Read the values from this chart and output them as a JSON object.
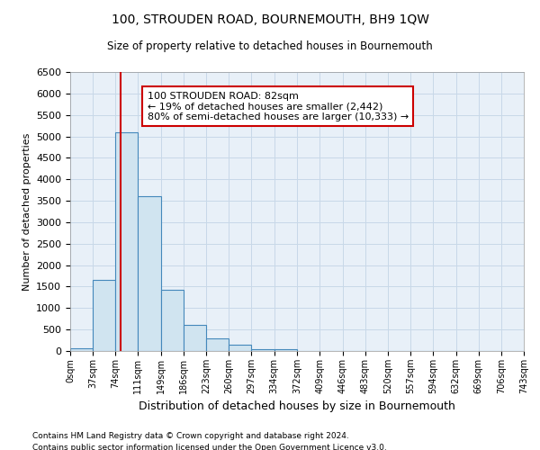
{
  "title": "100, STROUDEN ROAD, BOURNEMOUTH, BH9 1QW",
  "subtitle": "Size of property relative to detached houses in Bournemouth",
  "xlabel": "Distribution of detached houses by size in Bournemouth",
  "ylabel": "Number of detached properties",
  "footer1": "Contains HM Land Registry data © Crown copyright and database right 2024.",
  "footer2": "Contains public sector information licensed under the Open Government Licence v3.0.",
  "annotation_title": "100 STROUDEN ROAD: 82sqm",
  "annotation_line1": "← 19% of detached houses are smaller (2,442)",
  "annotation_line2": "80% of semi-detached houses are larger (10,333) →",
  "property_size": 82,
  "bin_edges": [
    0,
    37,
    74,
    111,
    149,
    186,
    223,
    260,
    297,
    334,
    372,
    409,
    446,
    483,
    520,
    557,
    594,
    632,
    669,
    706,
    743
  ],
  "bar_values": [
    60,
    1650,
    5100,
    3600,
    1430,
    600,
    300,
    150,
    50,
    50,
    5,
    5,
    0,
    0,
    0,
    0,
    0,
    0,
    0,
    0
  ],
  "bar_color": "#d0e4f0",
  "bar_edge_color": "#4488bb",
  "vline_color": "#cc0000",
  "annotation_box_color": "#ffffff",
  "annotation_box_edge": "#cc0000",
  "grid_color": "#c8d8e8",
  "background_color": "#e8f0f8",
  "fig_background": "#ffffff",
  "ylim": [
    0,
    6500
  ],
  "yticks": [
    0,
    500,
    1000,
    1500,
    2000,
    2500,
    3000,
    3500,
    4000,
    4500,
    5000,
    5500,
    6000,
    6500
  ]
}
